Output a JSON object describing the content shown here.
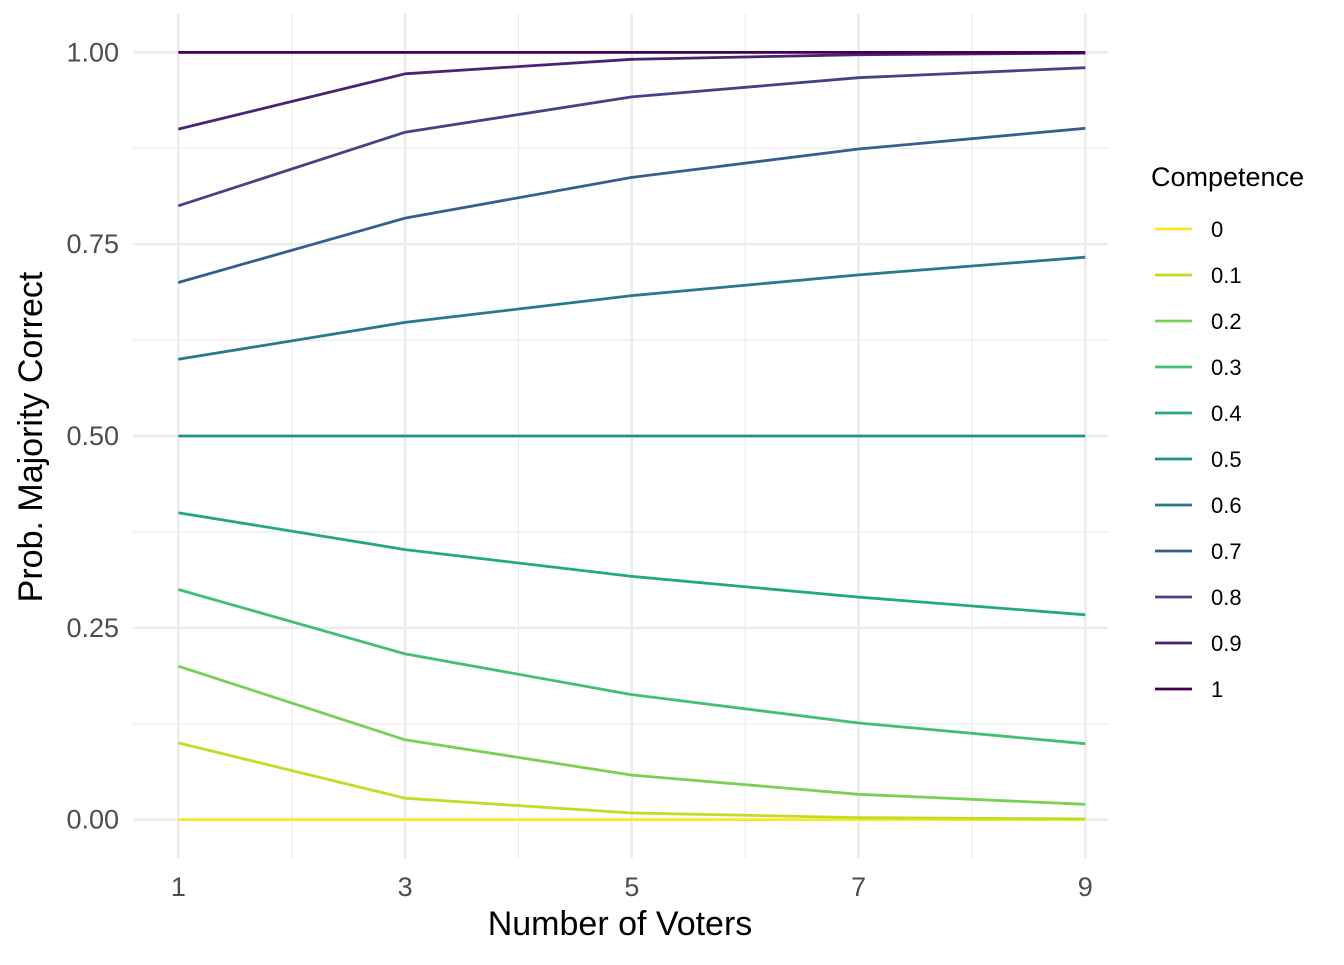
{
  "chart_data": {
    "type": "line",
    "title": "",
    "xlabel": "Number of Voters",
    "ylabel": "Prob. Majority Correct",
    "x": [
      1,
      3,
      5,
      7,
      9
    ],
    "x_ticks": [
      "1",
      "3",
      "5",
      "7",
      "9"
    ],
    "y_ticks": [
      "0.00",
      "0.25",
      "0.50",
      "0.75",
      "1.00"
    ],
    "xlim": [
      0.6,
      9.2
    ],
    "ylim": [
      -0.05,
      1.05
    ],
    "grid": true,
    "legend": {
      "title": "Competence",
      "placement": "right"
    },
    "series": [
      {
        "name": "0",
        "color": "#FDE725",
        "values": [
          0.0,
          0.0,
          0.0,
          0.0,
          0.0
        ]
      },
      {
        "name": "0.1",
        "color": "#BBDF27",
        "values": [
          0.1,
          0.028,
          0.0086,
          0.0027,
          0.0009
        ]
      },
      {
        "name": "0.2",
        "color": "#7AD151",
        "values": [
          0.2,
          0.104,
          0.058,
          0.033,
          0.02
        ]
      },
      {
        "name": "0.3",
        "color": "#43BF71",
        "values": [
          0.3,
          0.216,
          0.163,
          0.126,
          0.099
        ]
      },
      {
        "name": "0.4",
        "color": "#22A884",
        "values": [
          0.4,
          0.352,
          0.317,
          0.29,
          0.267
        ]
      },
      {
        "name": "0.5",
        "color": "#21908C",
        "values": [
          0.5,
          0.5,
          0.5,
          0.5,
          0.5
        ]
      },
      {
        "name": "0.6",
        "color": "#2A788E",
        "values": [
          0.6,
          0.648,
          0.683,
          0.71,
          0.733
        ]
      },
      {
        "name": "0.7",
        "color": "#355F8D",
        "values": [
          0.7,
          0.784,
          0.837,
          0.874,
          0.901
        ]
      },
      {
        "name": "0.8",
        "color": "#414487",
        "values": [
          0.8,
          0.896,
          0.942,
          0.967,
          0.98
        ]
      },
      {
        "name": "0.9",
        "color": "#482475",
        "values": [
          0.9,
          0.972,
          0.991,
          0.997,
          0.999
        ]
      },
      {
        "name": "1",
        "color": "#440154",
        "values": [
          1.0,
          1.0,
          1.0,
          1.0,
          1.0
        ]
      }
    ]
  }
}
